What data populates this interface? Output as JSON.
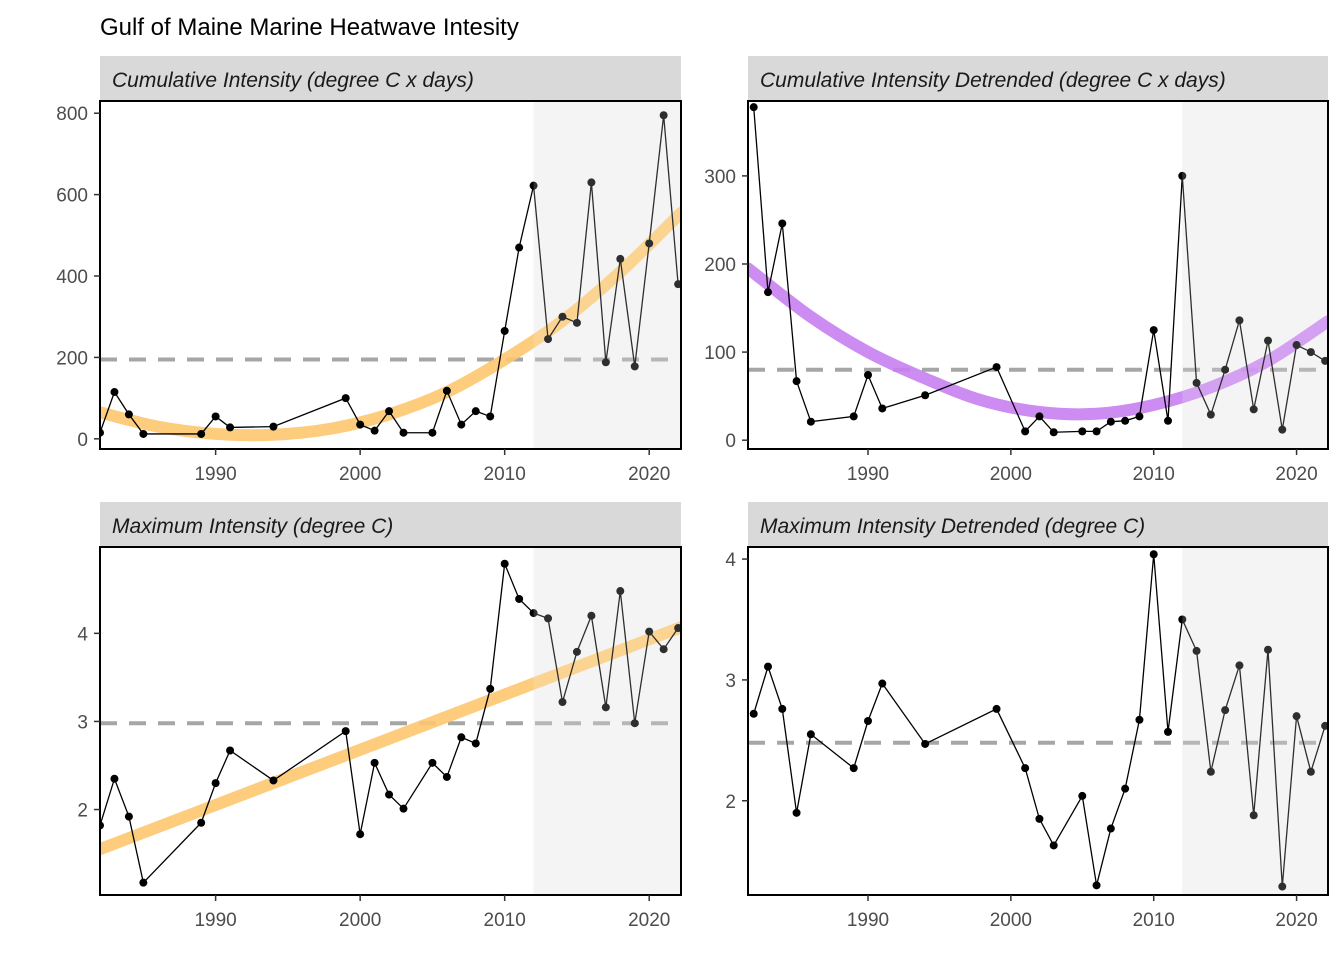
{
  "title": "Gulf of Maine Marine Heatwave Intesity",
  "colors": {
    "strip_bg": "#d9d9d9",
    "shade": "#f2f2f2",
    "ref_line": "#a6a6a6",
    "trend_orange": "#fdc76e",
    "trend_purple": "#c77ff0",
    "point": "#000000",
    "axis_text": "#4d4d4d"
  },
  "chart_data": [
    {
      "type": "line",
      "strip": "Cumulative Intensity (degree C x days)",
      "xlim": [
        1982,
        2022.2
      ],
      "ylim": [
        -25,
        830
      ],
      "xticks": [
        1990,
        2000,
        2010,
        2020
      ],
      "yticks": [
        0,
        200,
        400,
        600,
        800
      ],
      "show_x_labels": true,
      "shaded_from": 2012,
      "reference_y": 195,
      "trend_color": "orange",
      "trend": {
        "x": [
          1982,
          1986,
          1990,
          1994,
          1998,
          2002,
          2006,
          2010,
          2014,
          2018,
          2022.2
        ],
        "y": [
          65,
          30,
          12,
          10,
          25,
          60,
          115,
          195,
          290,
          410,
          555
        ]
      },
      "series": [
        {
          "x": [
            1982,
            1983,
            1984,
            1985,
            1989,
            1990,
            1991,
            1994,
            1999,
            2000,
            2001,
            2002,
            2003,
            2005,
            2006,
            2007,
            2008,
            2009,
            2010,
            2011,
            2012,
            2013,
            2014,
            2015,
            2016,
            2017,
            2018,
            2019,
            2020,
            2021,
            2022
          ],
          "y": [
            15,
            115,
            60,
            12,
            12,
            55,
            28,
            30,
            100,
            35,
            20,
            68,
            15,
            15,
            118,
            35,
            68,
            55,
            265,
            470,
            622,
            245,
            300,
            285,
            630,
            188,
            442,
            178,
            480,
            795,
            380
          ]
        }
      ]
    },
    {
      "type": "line",
      "strip": "Cumulative Intensity Detrended (degree C x days)",
      "xlim": [
        1981.6,
        2022.2
      ],
      "ylim": [
        -10,
        385
      ],
      "xticks": [
        1990,
        2000,
        2010,
        2020
      ],
      "yticks": [
        0,
        100,
        200,
        300
      ],
      "show_x_labels": true,
      "shaded_from": 2012,
      "reference_y": 80,
      "trend_color": "purple",
      "trend": {
        "x": [
          1981.6,
          1986,
          1990,
          1994,
          1998,
          2002,
          2006,
          2010,
          2014,
          2018,
          2022.2
        ],
        "y": [
          195,
          140,
          100,
          70,
          45,
          32,
          30,
          40,
          60,
          90,
          135
        ]
      },
      "series": [
        {
          "x": [
            1982,
            1983,
            1984,
            1985,
            1986,
            1989,
            1990,
            1991,
            1994,
            1999,
            2001,
            2002,
            2003,
            2005,
            2006,
            2007,
            2008,
            2009,
            2010,
            2011,
            2012,
            2013,
            2014,
            2015,
            2016,
            2017,
            2018,
            2019,
            2020,
            2021,
            2022
          ],
          "y": [
            378,
            168,
            246,
            67,
            21,
            27,
            74,
            36,
            51,
            83,
            10,
            27,
            9,
            10,
            10,
            21,
            22,
            27,
            125,
            22,
            300,
            65,
            29,
            80,
            136,
            35,
            113,
            12,
            108,
            100,
            90
          ]
        }
      ]
    },
    {
      "type": "line",
      "strip": "Maximum Intensity (degree C)",
      "xlim": [
        1982,
        2022.2
      ],
      "ylim": [
        1.03,
        4.98
      ],
      "xticks": [
        1990,
        2000,
        2010,
        2020
      ],
      "yticks": [
        2,
        3,
        4
      ],
      "show_x_labels": true,
      "shaded_from": 2012,
      "reference_y": 2.98,
      "trend_color": "orange",
      "trend": {
        "x": [
          1982,
          2022.2
        ],
        "y": [
          1.55,
          4.07
        ]
      },
      "series": [
        {
          "x": [
            1982,
            1983,
            1984,
            1985,
            1989,
            1990,
            1991,
            1994,
            1999,
            2000,
            2001,
            2002,
            2003,
            2005,
            2006,
            2007,
            2008,
            2009,
            2010,
            2011,
            2012,
            2013,
            2014,
            2015,
            2016,
            2017,
            2018,
            2019,
            2020,
            2021,
            2022
          ],
          "y": [
            1.82,
            2.35,
            1.92,
            1.17,
            1.85,
            2.3,
            2.67,
            2.33,
            2.89,
            1.72,
            2.53,
            2.17,
            2.01,
            2.53,
            2.37,
            2.82,
            2.75,
            3.37,
            4.79,
            4.39,
            4.23,
            4.17,
            3.22,
            3.79,
            4.2,
            3.16,
            4.48,
            2.98,
            4.02,
            3.82,
            4.06
          ]
        }
      ]
    },
    {
      "type": "line",
      "strip": "Maximum Intensity Detrended (degree C)",
      "xlim": [
        1981.6,
        2022.2
      ],
      "ylim": [
        1.22,
        4.1
      ],
      "xticks": [
        1990,
        2000,
        2010,
        2020
      ],
      "yticks": [
        2,
        3,
        4
      ],
      "show_x_labels": true,
      "shaded_from": 2012,
      "reference_y": 2.48,
      "series": [
        {
          "x": [
            1982,
            1983,
            1984,
            1985,
            1986,
            1989,
            1990,
            1991,
            1994,
            1999,
            2001,
            2002,
            2003,
            2005,
            2006,
            2007,
            2008,
            2009,
            2010,
            2011,
            2012,
            2013,
            2014,
            2015,
            2016,
            2017,
            2018,
            2019,
            2020,
            2021,
            2022
          ],
          "y": [
            2.72,
            3.11,
            2.76,
            1.9,
            2.55,
            2.27,
            2.66,
            2.97,
            2.47,
            2.76,
            2.27,
            1.85,
            1.63,
            2.04,
            1.3,
            1.77,
            2.1,
            2.67,
            4.04,
            2.57,
            3.5,
            3.24,
            2.24,
            2.75,
            3.12,
            1.88,
            3.25,
            1.29,
            2.7,
            2.24,
            2.62
          ]
        }
      ]
    }
  ]
}
